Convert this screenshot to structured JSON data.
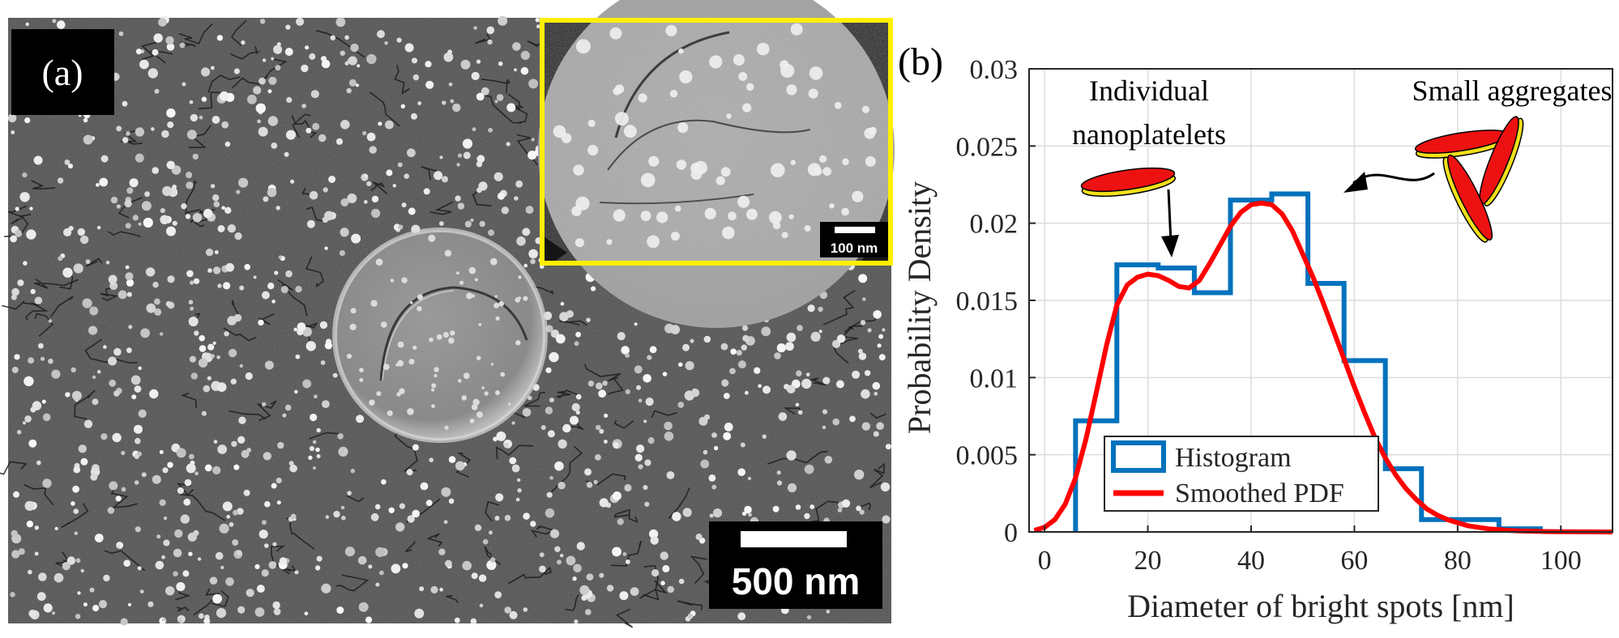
{
  "panel_a": {
    "label": "(a)",
    "scale_bar_label": "500 nm",
    "inset_scale_bar_label": "100 nm",
    "inset_border_color": "#ffef00"
  },
  "panel_b": {
    "label": "(b)",
    "annotations": {
      "individual_line1": "Individual",
      "individual_line2": "nanoplatelets",
      "aggregates": "Small aggregates"
    },
    "platelet_color": "#ee1111",
    "platelet_edge_color": "#f2e01a"
  },
  "chart_data": {
    "type": "line",
    "xlabel": "Diameter of bright spots [nm]",
    "ylabel": "Probability Density",
    "xlim": [
      -3,
      110
    ],
    "ylim": [
      0,
      0.03
    ],
    "xticks": [
      "0",
      "20",
      "40",
      "60",
      "80",
      "100"
    ],
    "yticks": [
      "0",
      "0.005",
      "0.01",
      "0.015",
      "0.02",
      "0.025",
      "0.03"
    ],
    "grid": true,
    "legend_position": "bottom-left",
    "histogram": {
      "name": "Histogram",
      "color": "#0072bd",
      "bin_edges": [
        6,
        14,
        22,
        29,
        36,
        44,
        51,
        58,
        66,
        73,
        81,
        88,
        96
      ],
      "density": [
        0.0072,
        0.0173,
        0.0171,
        0.0155,
        0.0215,
        0.0219,
        0.0161,
        0.0111,
        0.0041,
        0.0008,
        0.0008,
        0.0002
      ]
    },
    "smoothed_pdf": {
      "name": "Smoothed PDF",
      "color": "#ff0000",
      "x": [
        -2,
        0,
        2,
        4,
        6,
        8,
        10,
        12,
        14,
        16,
        18,
        20,
        22,
        24,
        26,
        28,
        30,
        32,
        34,
        36,
        38,
        40,
        42,
        44,
        46,
        48,
        50,
        52,
        54,
        56,
        58,
        60,
        62,
        64,
        66,
        68,
        70,
        72,
        74,
        76,
        78,
        80,
        82,
        84,
        86,
        88,
        90,
        92,
        94,
        96,
        98,
        100,
        102,
        104,
        106,
        108,
        110
      ],
      "y": [
        0.0001,
        0.0003,
        0.0008,
        0.0018,
        0.0035,
        0.006,
        0.009,
        0.0121,
        0.0147,
        0.016,
        0.0165,
        0.0167,
        0.0166,
        0.0163,
        0.0159,
        0.0158,
        0.0163,
        0.0174,
        0.0186,
        0.0198,
        0.0207,
        0.0212,
        0.0213,
        0.0212,
        0.0206,
        0.0195,
        0.018,
        0.0165,
        0.0148,
        0.013,
        0.0112,
        0.0094,
        0.0077,
        0.0061,
        0.0048,
        0.0037,
        0.0028,
        0.0021,
        0.0015,
        0.0011,
        0.0008,
        0.0006,
        0.0004,
        0.0003,
        0.0002,
        0.00015,
        0.0001,
        7e-05,
        5e-05,
        3e-05,
        2e-05,
        1e-05,
        1e-05,
        5e-06,
        3e-06,
        2e-06,
        1e-06
      ]
    }
  }
}
